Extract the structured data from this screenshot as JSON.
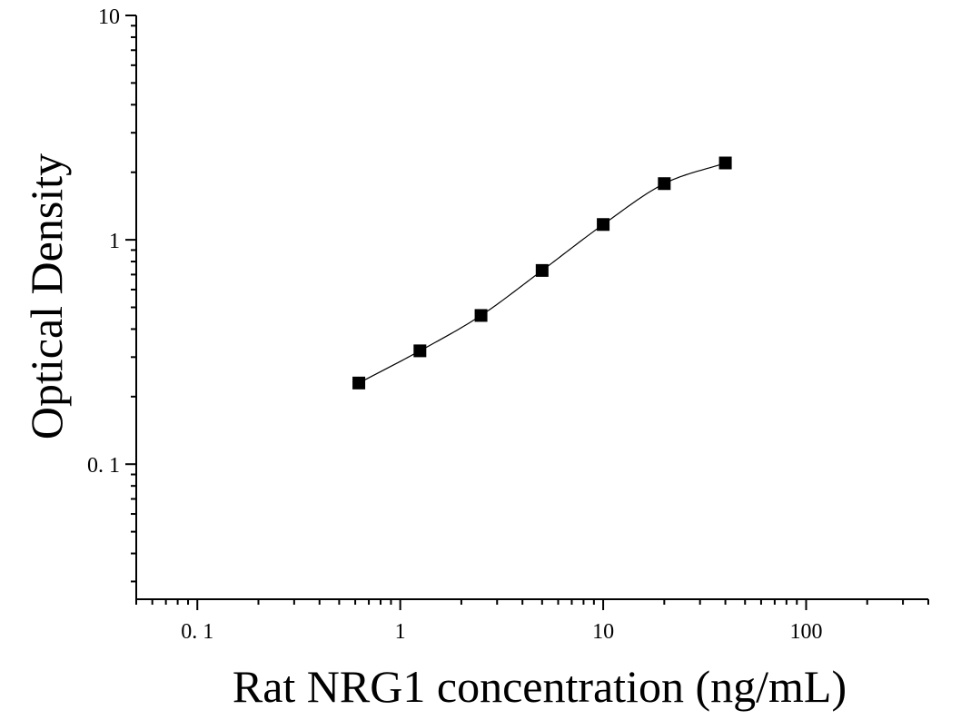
{
  "chart_data": {
    "type": "scatter",
    "title": "",
    "xlabel": "Rat NRG1 concentration (ng/mL)",
    "ylabel": "Optical Density",
    "xscale": "log",
    "yscale": "log",
    "xlim": [
      0.05,
      400
    ],
    "ylim": [
      0.025,
      10
    ],
    "x_ticks": [
      {
        "value": 0.1,
        "label": "0. 1"
      },
      {
        "value": 1,
        "label": "1"
      },
      {
        "value": 10,
        "label": "10"
      },
      {
        "value": 100,
        "label": "100"
      }
    ],
    "y_ticks": [
      {
        "value": 0.1,
        "label": "0. 1"
      },
      {
        "value": 1,
        "label": "1"
      },
      {
        "value": 10,
        "label": "10"
      }
    ],
    "grid": false,
    "legend": "none",
    "series": [
      {
        "marker": "square",
        "color": "#000000",
        "points": [
          {
            "x": 0.625,
            "y": 0.23
          },
          {
            "x": 1.25,
            "y": 0.32
          },
          {
            "x": 2.5,
            "y": 0.46
          },
          {
            "x": 5,
            "y": 0.73
          },
          {
            "x": 10,
            "y": 1.17
          },
          {
            "x": 20,
            "y": 1.78
          },
          {
            "x": 40,
            "y": 2.2
          }
        ]
      }
    ],
    "fit": {
      "type": "four-parameter-logistic",
      "color": "#000000",
      "x_range": [
        0.6,
        40
      ]
    }
  }
}
